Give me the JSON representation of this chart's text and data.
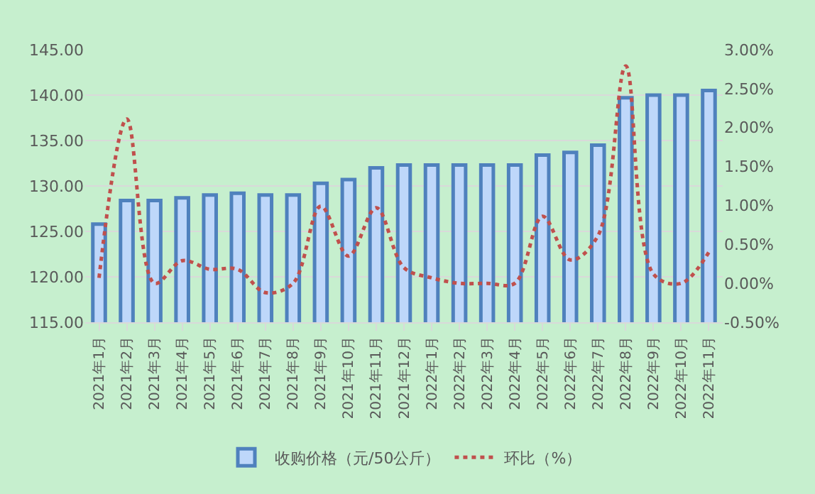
{
  "chart_data": {
    "type": "bar",
    "categories": [
      "2021年1月",
      "2021年2月",
      "2021年3月",
      "2021年4月",
      "2021年5月",
      "2021年6月",
      "2021年7月",
      "2021年8月",
      "2021年9月",
      "2021年10月",
      "2021年11月",
      "2021年12月",
      "2022年1月",
      "2022年2月",
      "2022年3月",
      "2022年4月",
      "2022年5月",
      "2022年6月",
      "2022年7月",
      "2022年8月",
      "2022年9月",
      "2022年10月",
      "2022年11月"
    ],
    "series": [
      {
        "name": "收购价格（元/50公斤）",
        "color": "#4f81bd",
        "values": [
          125.8,
          128.4,
          128.4,
          128.7,
          129.0,
          129.2,
          129.0,
          129.0,
          130.3,
          130.7,
          132.0,
          132.3,
          132.3,
          132.3,
          132.3,
          132.3,
          133.4,
          133.7,
          134.5,
          139.7,
          140.0,
          140.0,
          140.5
        ]
      },
      {
        "name": "环比（%）",
        "type": "line",
        "axis": "y2",
        "color": "#c0504d",
        "line_style": "dotted",
        "values": [
          0.07,
          2.11,
          0.0,
          0.29,
          0.18,
          0.18,
          -0.12,
          0.0,
          0.99,
          0.35,
          0.97,
          0.2,
          0.07,
          0.0,
          0.0,
          0.0,
          0.86,
          0.3,
          0.61,
          2.79,
          0.12,
          0.0,
          0.4
        ]
      }
    ],
    "ylim": [
      115,
      145
    ],
    "yticks": [
      {
        "value": 115,
        "label": "115.00"
      },
      {
        "value": 120,
        "label": "120.00"
      },
      {
        "value": 125,
        "label": "125.00"
      },
      {
        "value": 130,
        "label": "130.00"
      },
      {
        "value": 135,
        "label": "135.00"
      },
      {
        "value": 140,
        "label": "140.00"
      },
      {
        "value": 145,
        "label": "145.00"
      }
    ],
    "y2lim": [
      -0.5,
      3.0
    ],
    "y2ticks": [
      {
        "value": -0.5,
        "label": "-0.50%"
      },
      {
        "value": 0,
        "label": "0.00%"
      },
      {
        "value": 0.5,
        "label": "0.50%"
      },
      {
        "value": 1,
        "label": "1.00%"
      },
      {
        "value": 1.5,
        "label": "1.50%"
      },
      {
        "value": 2,
        "label": "2.00%"
      },
      {
        "value": 2.5,
        "label": "2.50%"
      },
      {
        "value": 3,
        "label": "3.00%"
      }
    ],
    "grid": "y",
    "legend": "bottom"
  }
}
